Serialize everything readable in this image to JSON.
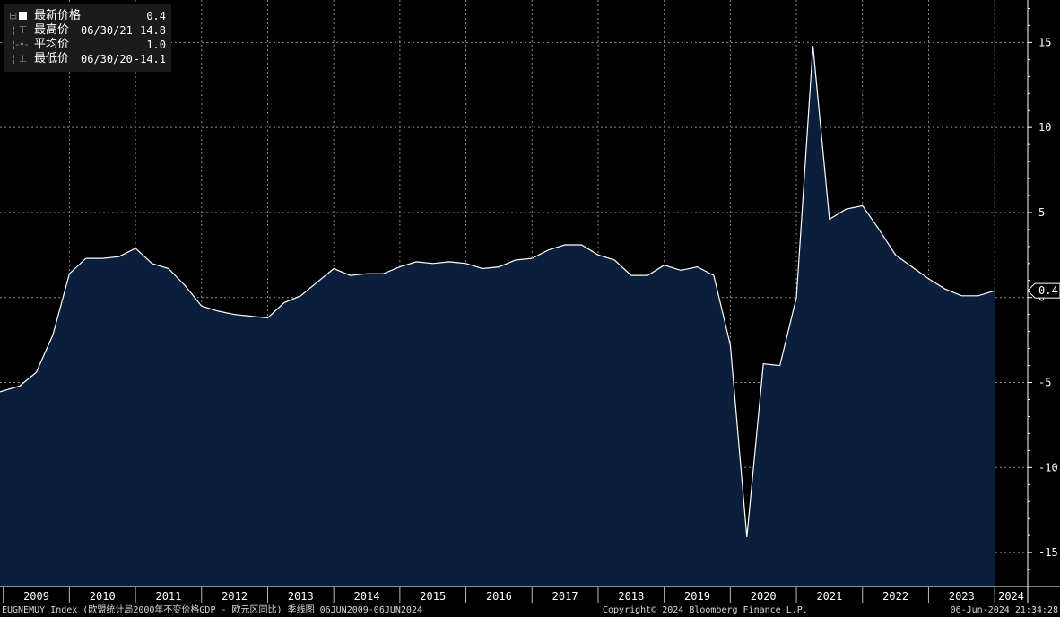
{
  "legend": {
    "rows": [
      {
        "label": "最新价格",
        "date": "",
        "value": "0.4"
      },
      {
        "label": "最高价",
        "date": "06/30/21",
        "value": "14.8"
      },
      {
        "label": "平均价",
        "date": "",
        "value": "1.0"
      },
      {
        "label": "最低价",
        "date": "06/30/20",
        "value": "-14.1"
      }
    ]
  },
  "last_value_label": "0.4",
  "footer": {
    "left": "EUGNEMUY Index (欧盟统计局2000年不变价格GDP - 欧元区同比) 季线图 06JUN2009-06JUN2024",
    "center": "Copyright© 2024 Bloomberg Finance L.P.",
    "right": "06-Jun-2024 21:34:28"
  },
  "colors": {
    "background": "#000000",
    "area_fill": "#0b1f3d",
    "line": "#ffffff",
    "grid": "#8a8a8a"
  },
  "chart_data": {
    "type": "area",
    "x_labels": [
      "2009",
      "2010",
      "2011",
      "2012",
      "2013",
      "2014",
      "2015",
      "2016",
      "2017",
      "2018",
      "2019",
      "2020",
      "2021",
      "2022",
      "2023",
      "2024"
    ],
    "ylim": [
      -17,
      17.5
    ],
    "yticks": [
      15,
      10,
      5,
      0,
      -5,
      -10,
      -15
    ],
    "ytick_labels": [
      "15",
      "10",
      "5",
      "0",
      "-5",
      "-10",
      "-15"
    ],
    "grid": true,
    "series": [
      {
        "x": [
          2009.25,
          2009.5,
          2009.75,
          2010.0,
          2010.25,
          2010.5,
          2010.75,
          2011.0,
          2011.25,
          2011.5,
          2011.75,
          2012.0,
          2012.25,
          2012.5,
          2012.75,
          2013.0,
          2013.25,
          2013.5,
          2013.75,
          2014.0,
          2014.25,
          2014.5,
          2014.75,
          2015.0,
          2015.25,
          2015.5,
          2015.75,
          2016.0,
          2016.25,
          2016.5,
          2016.75,
          2017.0,
          2017.25,
          2017.5,
          2017.75,
          2018.0,
          2018.25,
          2018.5,
          2018.75,
          2019.0,
          2019.25,
          2019.5,
          2019.75,
          2020.0,
          2020.25,
          2020.5,
          2020.75,
          2021.0,
          2021.25,
          2021.5,
          2021.75,
          2022.0,
          2022.25,
          2022.5,
          2022.75,
          2023.0,
          2023.25,
          2023.5,
          2023.75,
          2024.0
        ],
        "values": [
          -5.2,
          -4.4,
          -2.2,
          1.4,
          2.3,
          2.3,
          2.4,
          2.9,
          2.0,
          1.7,
          0.7,
          -0.5,
          -0.8,
          -1.0,
          -1.1,
          -1.2,
          -0.3,
          0.1,
          0.9,
          1.7,
          1.3,
          1.4,
          1.4,
          1.8,
          2.1,
          2.0,
          2.1,
          2.0,
          1.7,
          1.8,
          2.2,
          2.3,
          2.8,
          3.1,
          3.1,
          2.5,
          2.2,
          1.3,
          1.3,
          1.9,
          1.6,
          1.8,
          1.3,
          -2.8,
          -14.1,
          -3.9,
          -4.0,
          0.0,
          14.8,
          4.6,
          5.2,
          5.4,
          4.0,
          2.5,
          1.8,
          1.1,
          0.5,
          0.1,
          0.1,
          0.4
        ]
      }
    ]
  }
}
